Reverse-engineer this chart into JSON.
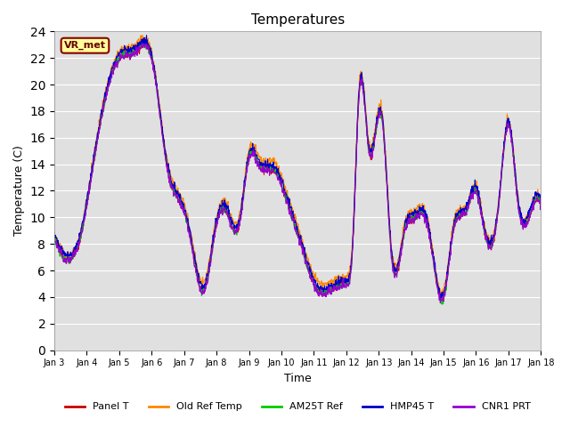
{
  "title": "Temperatures",
  "xlabel": "Time",
  "ylabel": "Temperature (C)",
  "ylim": [
    0,
    24
  ],
  "xlim_days": [
    3,
    18
  ],
  "annotation_text": "VR_met",
  "series_names": [
    "Panel T",
    "Old Ref Temp",
    "AM25T Ref",
    "HMP45 T",
    "CNR1 PRT"
  ],
  "series_colors": [
    "#cc0000",
    "#ff8800",
    "#00cc00",
    "#0000cc",
    "#9900cc"
  ],
  "x_tick_labels": [
    "Jan 3",
    "Jan 4",
    "Jan 5",
    "Jan 6",
    "Jan 7",
    "Jan 8",
    "Jan 9",
    "Jan 10",
    "Jan 11",
    "Jan 12",
    "Jan 13",
    "Jan 14",
    "Jan 15",
    "Jan 16",
    "Jan 17",
    "Jan 18"
  ],
  "background_color": "#e0e0e0",
  "fig_background": "#ffffff",
  "line_width": 0.8,
  "num_points": 1500
}
